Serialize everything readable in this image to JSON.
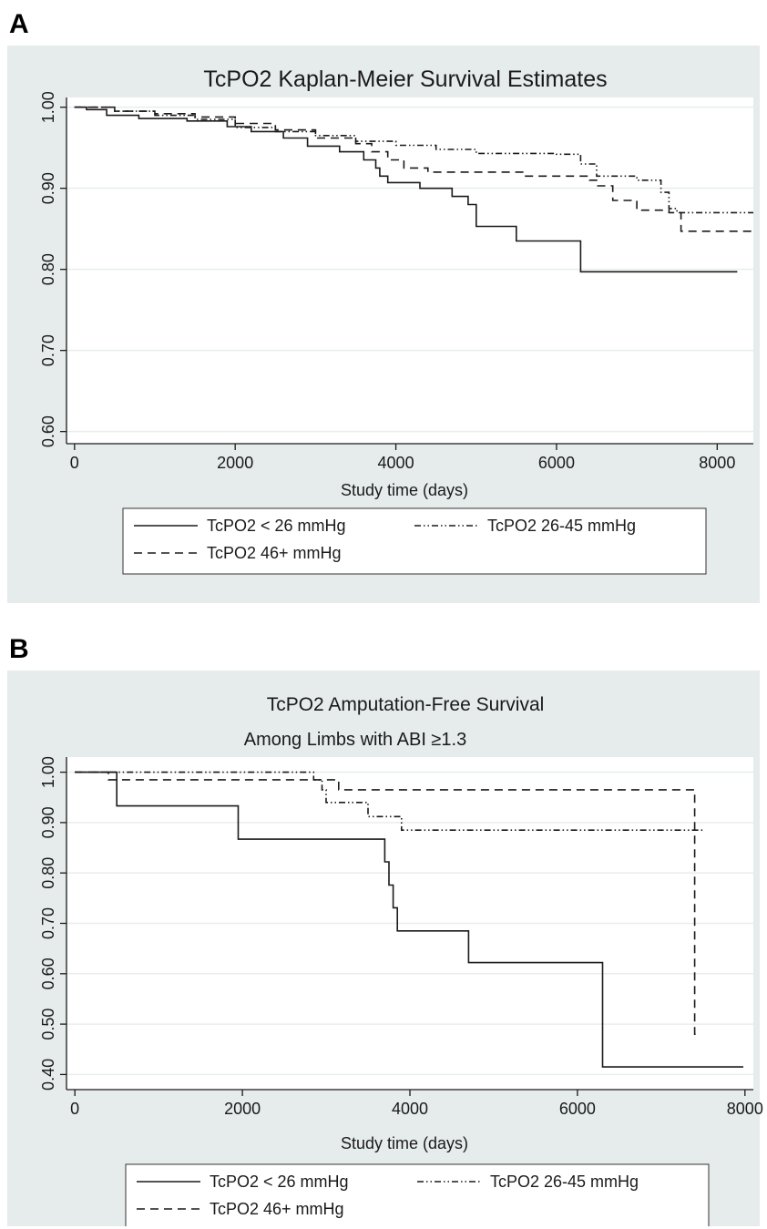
{
  "panels": [
    {
      "letter": "A"
    },
    {
      "letter": "B"
    }
  ],
  "colors": {
    "panel_bg": "#e6ebec",
    "plot_bg": "#ffffff",
    "grid": "#e9eded",
    "line": "#1a1a1a"
  },
  "chart_data": [
    {
      "type": "line",
      "step": true,
      "title": "TcPO2 Kaplan-Meier Survival Estimates",
      "subtitle": "",
      "xlabel": "Study time (days)",
      "ylabel": "",
      "xlim": [
        -100,
        8450
      ],
      "ylim": [
        0.585,
        1.012
      ],
      "xticks": [
        0,
        2000,
        4000,
        6000,
        8000
      ],
      "xtick_labels": [
        "0",
        "2000",
        "4000",
        "6000",
        "8000"
      ],
      "yticks": [
        0.6,
        0.7,
        0.8,
        0.9,
        1.0
      ],
      "ytick_labels": [
        "0.60",
        "0.70",
        "0.80",
        "0.90",
        "1.00"
      ],
      "grid": true,
      "legend_position": "bottom",
      "series": [
        {
          "name": "TcPO2 < 26 mmHg",
          "dash": "solid",
          "x": [
            0,
            150,
            400,
            800,
            1400,
            1900,
            2200,
            2600,
            2900,
            3300,
            3600,
            3750,
            3800,
            3900,
            4000,
            4300,
            4700,
            4900,
            5000,
            5500,
            6300,
            8250
          ],
          "y": [
            1.0,
            0.997,
            0.99,
            0.986,
            0.983,
            0.976,
            0.97,
            0.962,
            0.952,
            0.945,
            0.935,
            0.925,
            0.915,
            0.907,
            0.907,
            0.9,
            0.89,
            0.88,
            0.853,
            0.835,
            0.797,
            0.797
          ]
        },
        {
          "name": "TcPO2 26-45 mmHg",
          "dash": "dashdotdot",
          "x": [
            0,
            500,
            1000,
            1500,
            2000,
            2500,
            3000,
            3500,
            4000,
            4500,
            5000,
            6000,
            6300,
            6500,
            7000,
            7300,
            7400,
            7500,
            8450
          ],
          "y": [
            1.0,
            0.995,
            0.99,
            0.985,
            0.975,
            0.97,
            0.965,
            0.958,
            0.953,
            0.948,
            0.943,
            0.942,
            0.93,
            0.915,
            0.91,
            0.895,
            0.875,
            0.87,
            0.87
          ]
        },
        {
          "name": "TcPO2 46+ mmHg",
          "dash": "dashed",
          "x": [
            0,
            500,
            1000,
            1500,
            2000,
            2500,
            3000,
            3500,
            3700,
            3900,
            4100,
            4400,
            5000,
            5600,
            6400,
            6500,
            6700,
            7000,
            7300,
            7400,
            7550,
            8450
          ],
          "y": [
            1.0,
            0.995,
            0.992,
            0.988,
            0.98,
            0.972,
            0.962,
            0.955,
            0.945,
            0.935,
            0.925,
            0.92,
            0.92,
            0.915,
            0.91,
            0.903,
            0.885,
            0.873,
            0.873,
            0.87,
            0.847,
            0.847
          ]
        }
      ]
    },
    {
      "type": "line",
      "step": true,
      "title": "TcPO2 Amputation-Free Survival",
      "subtitle": "Among Limbs with ABI ≥1.3",
      "xlabel": "Study time (days)",
      "ylabel": "",
      "xlim": [
        -100,
        8100
      ],
      "ylim": [
        0.37,
        1.03
      ],
      "xticks": [
        0,
        2000,
        4000,
        6000,
        8000
      ],
      "xtick_labels": [
        "0",
        "2000",
        "4000",
        "6000",
        "8000"
      ],
      "yticks": [
        0.4,
        0.5,
        0.6,
        0.7,
        0.8,
        0.9,
        1.0
      ],
      "ytick_labels": [
        "0.40",
        "0.50",
        "0.60",
        "0.70",
        "0.80",
        "0.90",
        "1.00"
      ],
      "grid": true,
      "legend_position": "bottom",
      "series": [
        {
          "name": "TcPO2 < 26 mmHg",
          "dash": "solid",
          "x": [
            0,
            500,
            1950,
            3700,
            3750,
            3800,
            3850,
            3900,
            4700,
            6300,
            7980
          ],
          "y": [
            1.0,
            0.933,
            0.867,
            0.822,
            0.776,
            0.731,
            0.685,
            0.685,
            0.622,
            0.415,
            0.415
          ]
        },
        {
          "name": "TcPO2 26-45 mmHg",
          "dash": "dashdotdot",
          "x": [
            0,
            2850,
            2950,
            3000,
            3500,
            3900,
            7500
          ],
          "y": [
            1.0,
            0.985,
            0.965,
            0.94,
            0.912,
            0.885,
            0.885
          ]
        },
        {
          "name": "TcPO2 46+ mmHg",
          "dash": "dashed",
          "x": [
            0,
            350,
            400,
            3150,
            7400,
            7450
          ],
          "y": [
            1.0,
            1.0,
            0.985,
            0.965,
            0.48,
            0.48
          ]
        }
      ]
    }
  ]
}
